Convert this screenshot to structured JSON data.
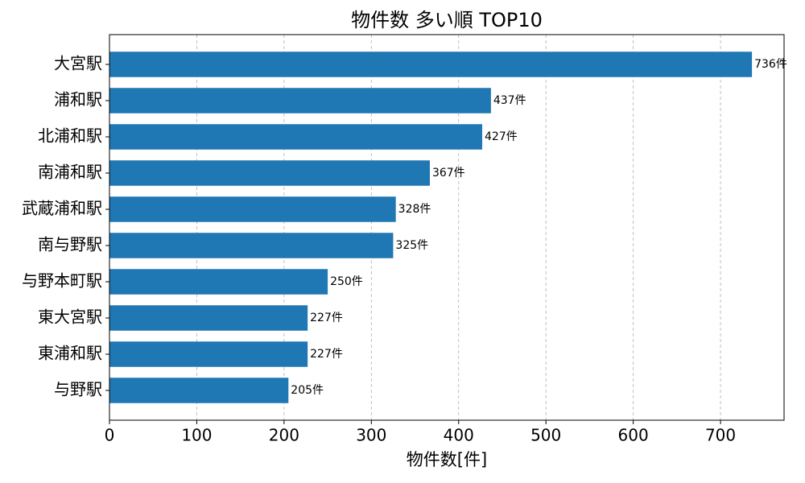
{
  "chart_data": {
    "type": "barh",
    "title": "物件数 多い順 TOP10",
    "x_label": "物件数[件]",
    "categories": [
      "大宮駅",
      "浦和駅",
      "北浦和駅",
      "南浦和駅",
      "武蔵浦和駅",
      "南与野駅",
      "与野本町駅",
      "東大宮駅",
      "東浦和駅",
      "与野駅"
    ],
    "values": [
      736,
      437,
      427,
      367,
      328,
      325,
      250,
      227,
      227,
      205
    ],
    "value_labels": [
      "736件",
      "437件",
      "427件",
      "367件",
      "328件",
      "325件",
      "250件",
      "227件",
      "227件",
      "205件"
    ],
    "color": "#1f77b4",
    "xlim": [
      0,
      772.8
    ],
    "xticks": [
      0,
      100,
      200,
      300,
      400,
      500,
      600,
      700
    ],
    "grid": true
  }
}
